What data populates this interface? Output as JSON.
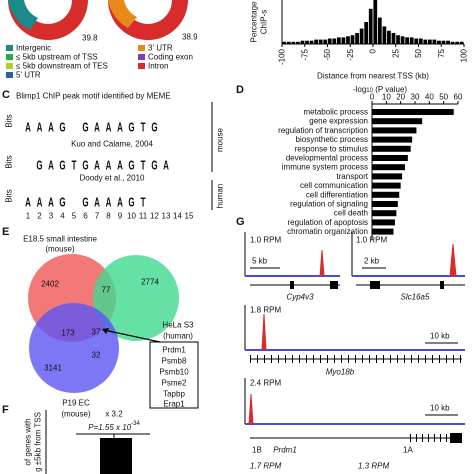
{
  "panel_ab": {
    "donut_labels": [
      "39.8",
      "38.9"
    ],
    "legend_left": [
      "Intergenic",
      "≤ 5kb upstream of TSS",
      "≤ 5kb downstream of TES",
      "5' UTR"
    ],
    "legend_right": [
      "3' UTR",
      "Coding exon",
      "Intron"
    ]
  },
  "panel_hist": {
    "type": "histogram",
    "y_label_1": "Percentage",
    "y_label_2": "ChIP-s",
    "x_label": "Distance from nearest TSS (kb)",
    "xlim": [
      -100,
      100
    ],
    "xticks": [
      -100,
      -75,
      -50,
      -25,
      0,
      25,
      50,
      75,
      100
    ],
    "bins": [
      -100,
      -95,
      -90,
      -85,
      -80,
      -75,
      -70,
      -65,
      -60,
      -55,
      -50,
      -45,
      -40,
      -35,
      -30,
      -25,
      -20,
      -15,
      -10,
      -5,
      0,
      5,
      10,
      15,
      20,
      25,
      30,
      35,
      40,
      45,
      50,
      55,
      60,
      65,
      70,
      75,
      80,
      85,
      90,
      95,
      100
    ],
    "values": [
      1,
      1,
      1,
      1,
      1.5,
      1.5,
      1.5,
      2,
      2,
      2,
      2.5,
      2.5,
      3,
      3,
      3.5,
      4,
      5,
      7,
      10,
      16,
      20,
      12,
      8,
      6,
      5,
      4,
      3.5,
      3,
      3,
      2.5,
      2.5,
      2,
      2,
      2,
      1.5,
      1.5,
      1.5,
      1,
      1,
      1
    ],
    "ylim": [
      0,
      20
    ],
    "color": "#000000"
  },
  "panel_c": {
    "letter": "C",
    "title": "Blimp1 ChIP peak motif identified by MEME",
    "y_label": "Bits",
    "motifs": [
      {
        "letters": [
          "A",
          "A",
          "A",
          "G",
          null,
          "G",
          "A",
          "A",
          "A",
          "G",
          "T",
          "G"
        ]
      },
      {
        "caption": "Kuo and Calame, 2004",
        "letters": [
          null,
          "G",
          "A",
          "G",
          "T",
          "G",
          "A",
          "A",
          "A",
          "G",
          "T",
          "G",
          "A"
        ]
      },
      {
        "caption": "Doody et al., 2010",
        "letters": [
          "A",
          "A",
          "A",
          "G",
          null,
          "G",
          "A",
          "A",
          "A",
          "G",
          "T"
        ]
      }
    ],
    "species": [
      "mouse",
      "human"
    ],
    "positions": [
      1,
      2,
      3,
      4,
      5,
      6,
      7,
      8,
      9,
      10,
      11,
      12,
      13,
      14,
      15
    ]
  },
  "panel_d": {
    "type": "bar",
    "letter": "D",
    "x_label_prefix": "-log",
    "x_label_sub": "10",
    "x_label_suffix": " (P value)",
    "categories": [
      "metabolic process",
      "gene expression",
      "regulation of transcription",
      "biosynthetic process",
      "response to stimulus",
      "developmental process",
      "immune system process",
      "transport",
      "cell communication",
      "cell differentiation",
      "regulation of signaling",
      "cell death",
      "regulation of apoptosis",
      "chromatin organization"
    ],
    "values": [
      57,
      35,
      31,
      28,
      27,
      25,
      23,
      21,
      20,
      19,
      18,
      17,
      16,
      15
    ],
    "xlim": [
      0,
      60
    ],
    "xticks": [
      0,
      10,
      20,
      30,
      40,
      50,
      60
    ],
    "color": "#000000"
  },
  "panel_e": {
    "letter": "E",
    "title_1": "E18.5 small intestine",
    "title_2": "(mouse)",
    "hela_1": "HeLa S3",
    "hela_2": "(human)",
    "p19_1": "P19 EC",
    "p19_2": "(mouse)",
    "counts": {
      "intestine_only": 2402,
      "intestine_hela": 77,
      "hela_only": 2774,
      "intestine_p19": 173,
      "all_three": 37,
      "p19_only": 3141,
      "hela_p19": 32
    },
    "genes": [
      "Prdm1",
      "Psmb8",
      "Psmb10",
      "Psme2",
      "Tapbp",
      "Erap1"
    ]
  },
  "panel_f": {
    "letter": "F",
    "fold": "x 3.2",
    "p_prefix": "P=1.55 x 10",
    "p_exp": "-34",
    "y_label_1": "of genes with",
    "y_label_2": "g ±5kb from TSS"
  },
  "panel_g": {
    "letter": "G",
    "tracks": [
      {
        "rpm": "1.0 RPM",
        "scale": "5 kb",
        "gene": "Cyp4v3"
      },
      {
        "rpm": "1.0 RPM",
        "scale": "2 kb",
        "gene": "Slc16a5"
      },
      {
        "rpm": "1.8 RPM",
        "scale": "10 kb",
        "gene": "Myo18b"
      },
      {
        "rpm": "2.4 RPM",
        "scale": "10 kb",
        "gene": "Prdm1"
      }
    ],
    "exon_labels": [
      "1B",
      "1A"
    ],
    "bottom_rpms": [
      "1.7 RPM",
      "1.3 RPM"
    ]
  }
}
